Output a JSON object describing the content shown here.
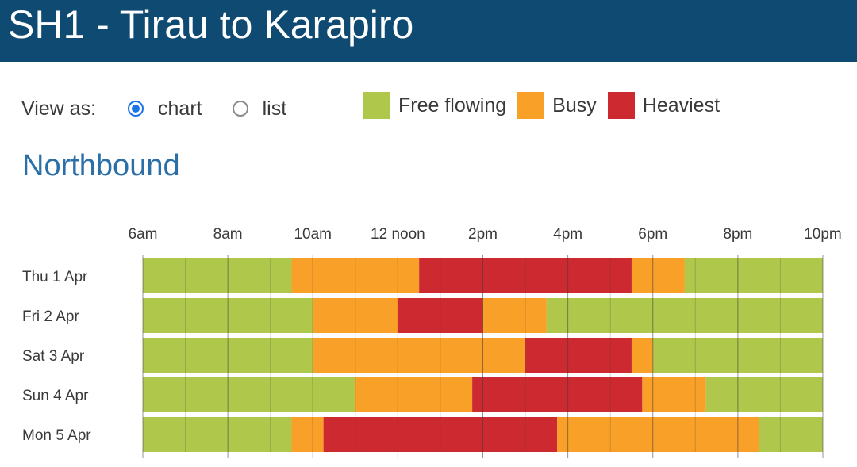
{
  "header": {
    "title": "SH1 - Tirau to Karapiro"
  },
  "view": {
    "label": "View as:",
    "options": [
      {
        "label": "chart",
        "selected": true
      },
      {
        "label": "list",
        "selected": false
      }
    ]
  },
  "legend": [
    {
      "label": "Free flowing",
      "color": "#afc74a"
    },
    {
      "label": "Busy",
      "color": "#f9a029"
    },
    {
      "label": "Heaviest",
      "color": "#cc2a30"
    }
  ],
  "direction": "Northbound",
  "chart_data": {
    "type": "bar",
    "orientation": "horizontal-timeline",
    "x_range_hours": [
      6,
      22
    ],
    "x_ticks": [
      {
        "label": "6am",
        "hour": 6
      },
      {
        "label": "8am",
        "hour": 8
      },
      {
        "label": "10am",
        "hour": 10
      },
      {
        "label": "12 noon",
        "hour": 12
      },
      {
        "label": "2pm",
        "hour": 14
      },
      {
        "label": "4pm",
        "hour": 16
      },
      {
        "label": "6pm",
        "hour": 18
      },
      {
        "label": "8pm",
        "hour": 20
      },
      {
        "label": "10pm",
        "hour": 22
      }
    ],
    "categories": [
      "Thu 1 Apr",
      "Fri 2 Apr",
      "Sat 3 Apr",
      "Sun 4 Apr",
      "Mon 5 Apr"
    ],
    "rows": [
      {
        "day": "Thu 1 Apr",
        "segments": [
          {
            "level": "Free flowing",
            "start": 6,
            "end": 9.5
          },
          {
            "level": "Busy",
            "start": 9.5,
            "end": 12.5
          },
          {
            "level": "Heaviest",
            "start": 12.5,
            "end": 17.5
          },
          {
            "level": "Busy",
            "start": 17.5,
            "end": 18.75
          },
          {
            "level": "Free flowing",
            "start": 18.75,
            "end": 22
          }
        ]
      },
      {
        "day": "Fri 2 Apr",
        "segments": [
          {
            "level": "Free flowing",
            "start": 6,
            "end": 10
          },
          {
            "level": "Busy",
            "start": 10,
            "end": 12
          },
          {
            "level": "Heaviest",
            "start": 12,
            "end": 14
          },
          {
            "level": "Busy",
            "start": 14,
            "end": 15.5
          },
          {
            "level": "Free flowing",
            "start": 15.5,
            "end": 22
          }
        ]
      },
      {
        "day": "Sat 3 Apr",
        "segments": [
          {
            "level": "Free flowing",
            "start": 6,
            "end": 10
          },
          {
            "level": "Busy",
            "start": 10,
            "end": 15
          },
          {
            "level": "Heaviest",
            "start": 15,
            "end": 17.5
          },
          {
            "level": "Busy",
            "start": 17.5,
            "end": 18
          },
          {
            "level": "Free flowing",
            "start": 18,
            "end": 22
          }
        ]
      },
      {
        "day": "Sun 4 Apr",
        "segments": [
          {
            "level": "Free flowing",
            "start": 6,
            "end": 11
          },
          {
            "level": "Busy",
            "start": 11,
            "end": 13.75
          },
          {
            "level": "Heaviest",
            "start": 13.75,
            "end": 17.75
          },
          {
            "level": "Busy",
            "start": 17.75,
            "end": 19.25
          },
          {
            "level": "Free flowing",
            "start": 19.25,
            "end": 22
          }
        ]
      },
      {
        "day": "Mon 5 Apr",
        "segments": [
          {
            "level": "Free flowing",
            "start": 6,
            "end": 9.5
          },
          {
            "level": "Busy",
            "start": 9.5,
            "end": 10.25
          },
          {
            "level": "Heaviest",
            "start": 10.25,
            "end": 15.75
          },
          {
            "level": "Busy",
            "start": 15.75,
            "end": 20.5
          },
          {
            "level": "Free flowing",
            "start": 20.5,
            "end": 22
          }
        ]
      }
    ],
    "grid": true,
    "legend_position": "top"
  }
}
